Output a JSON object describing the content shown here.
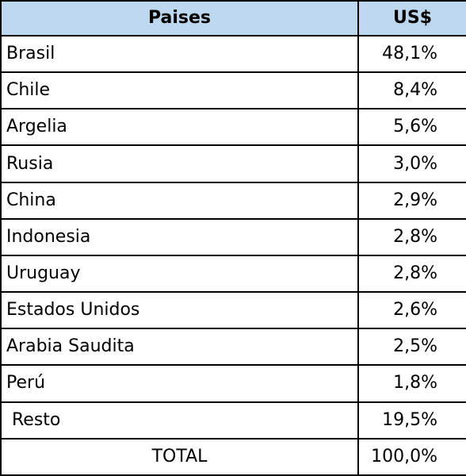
{
  "header": {
    "country": "Paises",
    "value": "US$"
  },
  "rows": [
    {
      "country": "Brasil",
      "value": "48,1%"
    },
    {
      "country": "Chile",
      "value": "8,4%"
    },
    {
      "country": "Argelia",
      "value": "5,6%"
    },
    {
      "country": "Rusia",
      "value": "3,0%"
    },
    {
      "country": "China",
      "value": "2,9%"
    },
    {
      "country": "Indonesia",
      "value": "2,8%"
    },
    {
      "country": "Uruguay",
      "value": "2,8%"
    },
    {
      "country": "Estados Unidos",
      "value": "2,6%"
    },
    {
      "country": "Arabia Saudita",
      "value": "2,5%"
    },
    {
      "country": "Perú",
      "value": "1,8%"
    },
    {
      "country": "Resto",
      "value": "19,5%"
    }
  ],
  "total": {
    "label": "TOTAL",
    "value": "100,0%"
  },
  "colors": {
    "header_bg": "#bdd7ee",
    "border": "#000000"
  }
}
